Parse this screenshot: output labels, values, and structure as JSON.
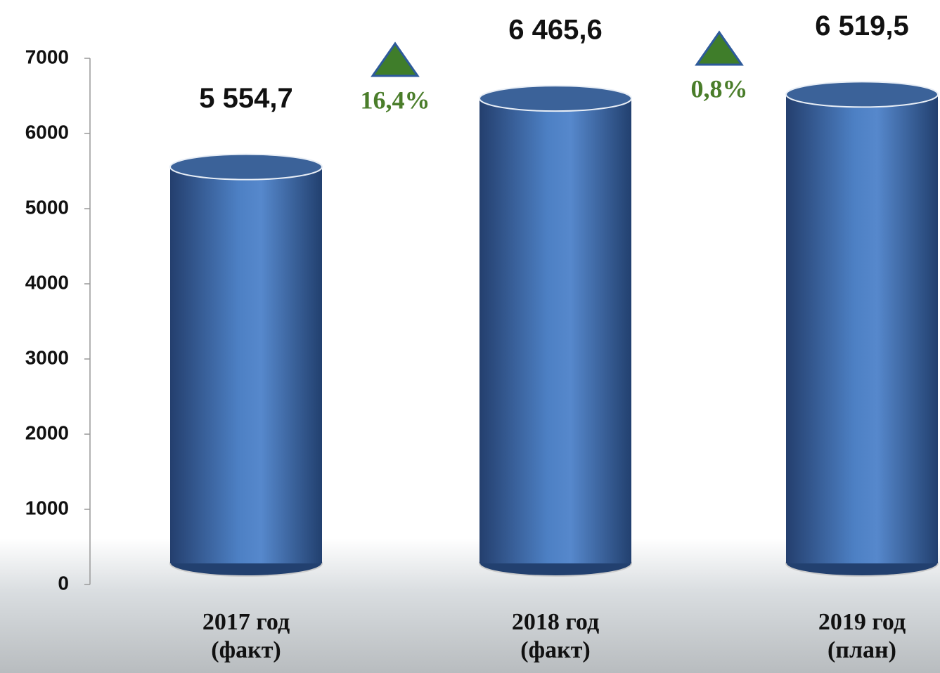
{
  "chart_data": {
    "type": "cylinder-bar",
    "categories": [
      "2017 год (факт)",
      "2018 год (факт)",
      "2019 год (план)"
    ],
    "values": [
      5554.7,
      6465.6,
      6519.5
    ],
    "value_labels": [
      "5 554,7",
      "6 465,6",
      "6 519,5"
    ],
    "color": "#4a7bc0",
    "ylim": [
      0,
      7000
    ],
    "yticks": [
      0,
      1000,
      2000,
      3000,
      4000,
      5000,
      6000,
      7000
    ],
    "annotations": [
      "16,4%",
      "0,8%"
    ],
    "annotation_color": "#4a7d2a"
  }
}
